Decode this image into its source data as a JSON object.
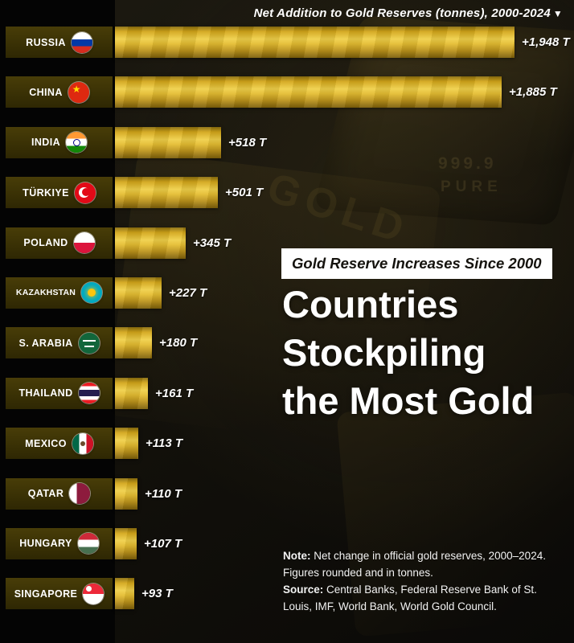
{
  "header": {
    "title": "Net Addition to Gold Reserves (tonnes), 2000-2024",
    "caret": "▼"
  },
  "overlay": {
    "badge": "Gold Reserve Increases Since 2000",
    "heading": "Countries Stockpiling the Most Gold"
  },
  "footnote": {
    "note_label": "Note:",
    "note_body": "Net change in official gold reserves, 2000–2024. Figures rounded and in tonnes.",
    "source_label": "Source:",
    "source_body": "Central Banks, Federal Reserve Bank of St. Louis, IMF, World Bank, World Gold Council."
  },
  "background": {
    "engraving_numbers": "999.9",
    "engraving_purity": "PURE",
    "engraving_gold": "GOLD"
  },
  "colors": {
    "gold_bar": "#e5be32",
    "label_box": "#3a3105",
    "page_bg": "#13110b",
    "badge_bg": "#ffffff",
    "badge_text": "#15130e",
    "text": "#ffffff"
  },
  "chart_data": {
    "type": "bar",
    "orientation": "horizontal",
    "title": "Net Addition to Gold Reserves (tonnes), 2000-2024",
    "unit": "tonnes",
    "xlim": [
      0,
      2000
    ],
    "legend": "none",
    "categories": [
      "RUSSIA",
      "CHINA",
      "INDIA",
      "TÜRKIYE",
      "POLAND",
      "KAZAKHSTAN",
      "S. ARABIA",
      "THAILAND",
      "MEXICO",
      "QATAR",
      "HUNGARY",
      "SINGAPORE"
    ],
    "values": [
      1948,
      1885,
      518,
      501,
      345,
      227,
      180,
      161,
      113,
      110,
      107,
      93
    ],
    "value_labels": [
      "+1,948 T",
      "+1,885 T",
      "+518 T",
      "+501 T",
      "+345 T",
      "+227 T",
      "+180 T",
      "+161 T",
      "+113 T",
      "+110 T",
      "+107 T",
      "+93 T"
    ],
    "flags": [
      "flag-russia",
      "flag-china",
      "flag-india",
      "flag-turkiye",
      "flag-poland",
      "flag-kazakhstan",
      "flag-saudi-arabia",
      "flag-thailand",
      "flag-mexico",
      "flag-qatar",
      "flag-hungary",
      "flag-singapore"
    ]
  }
}
